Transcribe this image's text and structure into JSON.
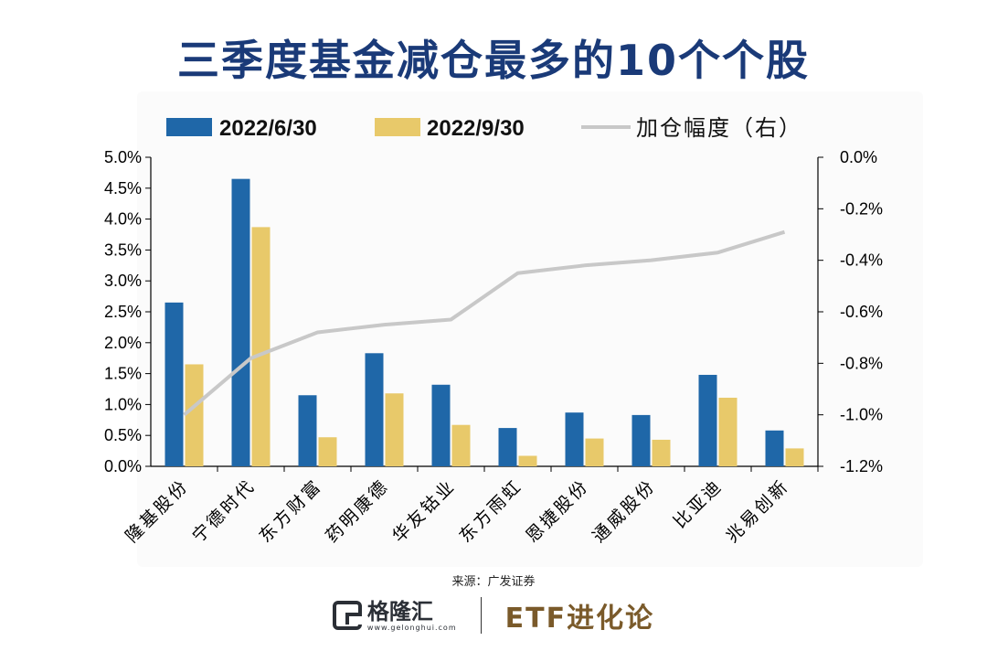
{
  "title": "三季度基金减仓最多的10个个股",
  "source": "来源：广发证券",
  "logo": {
    "name": "格隆汇",
    "url": "www.gelonghui.com"
  },
  "brand": "ETF进化论",
  "colors": {
    "series1": "#1f67a8",
    "series2": "#e8c96a",
    "line": "#c8c8c8",
    "title": "#1a3a78"
  },
  "chart_data": {
    "type": "bar+line",
    "categories": [
      "隆基股份",
      "宁德时代",
      "东方财富",
      "药明康德",
      "华友钴业",
      "东方雨虹",
      "恩捷股份",
      "通威股份",
      "比亚迪",
      "兆易创新"
    ],
    "series": [
      {
        "name": "2022/6/30",
        "type": "bar",
        "axis": "left",
        "values": [
          2.65,
          4.65,
          1.15,
          1.83,
          1.32,
          0.62,
          0.87,
          0.83,
          1.48,
          0.58
        ]
      },
      {
        "name": "2022/9/30",
        "type": "bar",
        "axis": "left",
        "values": [
          1.65,
          3.87,
          0.47,
          1.18,
          0.67,
          0.17,
          0.45,
          0.43,
          1.11,
          0.29
        ]
      },
      {
        "name": "加仓幅度（右）",
        "type": "line",
        "axis": "right",
        "values": [
          -1.0,
          -0.78,
          -0.68,
          -0.65,
          -0.63,
          -0.45,
          -0.42,
          -0.4,
          -0.37,
          -0.29
        ]
      }
    ],
    "left_axis": {
      "min": 0,
      "max": 5.0,
      "step": 0.5,
      "ticks": [
        "0.0%",
        "0.5%",
        "1.0%",
        "1.5%",
        "2.0%",
        "2.5%",
        "3.0%",
        "3.5%",
        "4.0%",
        "4.5%",
        "5.0%"
      ]
    },
    "right_axis": {
      "min": -1.2,
      "max": 0,
      "step": 0.2,
      "ticks": [
        "-1.2%",
        "-1.0%",
        "-0.8%",
        "-0.6%",
        "-0.4%",
        "-0.2%",
        "0.0%"
      ]
    },
    "legend": {
      "position": "top"
    }
  }
}
